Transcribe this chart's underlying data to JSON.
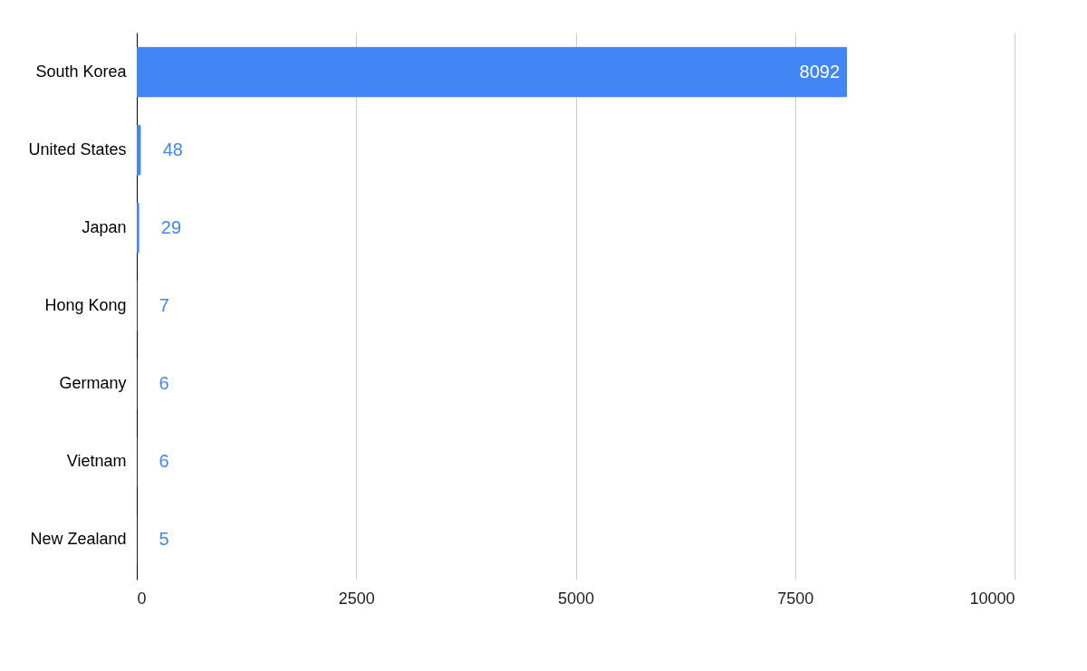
{
  "chart_data": {
    "type": "bar",
    "orientation": "horizontal",
    "categories": [
      "South Korea",
      "United States",
      "Japan",
      "Hong Kong",
      "Germany",
      "Vietnam",
      "New Zealand"
    ],
    "values": [
      8092,
      48,
      29,
      7,
      6,
      6,
      5
    ],
    "color": "#4285f4",
    "xlim": [
      0,
      10000
    ],
    "xticks": [
      0,
      2500,
      5000,
      7500,
      10000
    ],
    "grid": "x",
    "data_labels": true
  }
}
